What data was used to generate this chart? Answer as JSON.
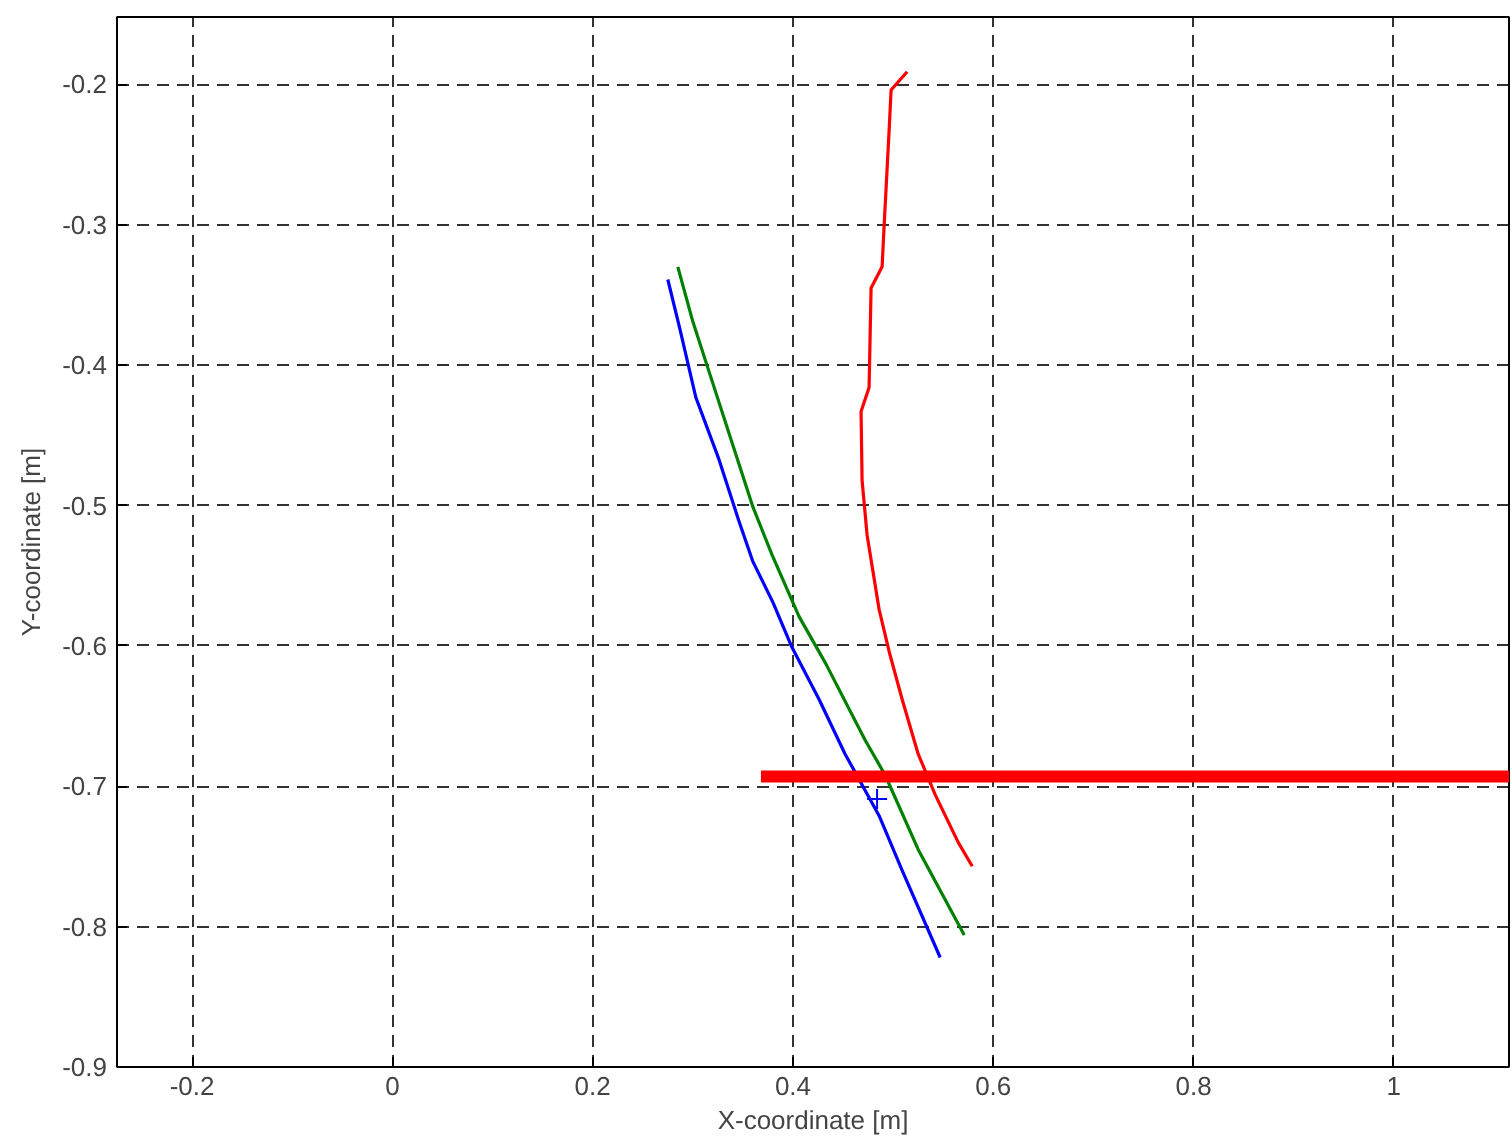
{
  "chart_data": {
    "type": "line",
    "xlabel": "X-coordinate [m]",
    "ylabel": "Y-coordinate [m]",
    "xlim": [
      -0.275,
      1.115
    ],
    "ylim": [
      -0.9,
      -0.152
    ],
    "xticks": [
      {
        "value": -0.2,
        "label": "-0.2"
      },
      0,
      {
        "value": 0.2,
        "label": "0.2"
      },
      {
        "value": 0.4,
        "label": "0.4"
      },
      {
        "value": 0.6,
        "label": "0.6"
      },
      {
        "value": 0.8,
        "label": "0.8"
      },
      1
    ],
    "yticks": [
      {
        "value": -0.9,
        "label": "-0.9"
      },
      {
        "value": -0.8,
        "label": "-0.8"
      },
      {
        "value": -0.7,
        "label": "-0.7"
      },
      {
        "value": -0.6,
        "label": "-0.6"
      },
      {
        "value": -0.5,
        "label": "-0.5"
      },
      {
        "value": -0.4,
        "label": "-0.4"
      },
      {
        "value": -0.3,
        "label": "-0.3"
      },
      {
        "value": -0.2,
        "label": "-0.2"
      }
    ],
    "grid": true,
    "line_style": "solid",
    "series": [
      {
        "color": "#ff0000",
        "x": [
          0.514,
          0.498,
          0.496,
          0.491,
          0.489,
          0.478,
          0.476,
          0.468,
          0.469,
          0.474,
          0.486,
          0.496,
          0.509,
          0.525,
          0.542,
          0.565,
          0.579
        ],
        "values": [
          -0.191,
          -0.204,
          -0.233,
          -0.301,
          -0.33,
          -0.345,
          -0.416,
          -0.433,
          -0.482,
          -0.521,
          -0.574,
          -0.604,
          -0.638,
          -0.677,
          -0.706,
          -0.74,
          -0.757
        ]
      },
      {
        "color": "#008000",
        "x": [
          0.285,
          0.3,
          0.32,
          0.34,
          0.36,
          0.379,
          0.406,
          0.433,
          0.472,
          0.492,
          0.525,
          0.571
        ],
        "values": [
          -0.33,
          -0.369,
          -0.413,
          -0.457,
          -0.501,
          -0.535,
          -0.579,
          -0.613,
          -0.667,
          -0.692,
          -0.745,
          -0.806
        ]
      },
      {
        "color": "#0000ff",
        "x": [
          0.275,
          0.287,
          0.303,
          0.326,
          0.346,
          0.36,
          0.38,
          0.399,
          0.426,
          0.452,
          0.486,
          0.509,
          0.547
        ],
        "values": [
          -0.339,
          -0.374,
          -0.423,
          -0.467,
          -0.511,
          -0.54,
          -0.569,
          -0.601,
          -0.638,
          -0.677,
          -0.721,
          -0.76,
          -0.822
        ]
      },
      {
        "color": "#ff0000",
        "x": [
          0.368,
          1.115
        ],
        "values": [
          -0.693,
          -0.693
        ]
      },
      {
        "type": "scatter",
        "marker": "cross",
        "color": "#0000ff",
        "x": [
          0.484
        ],
        "values": [
          -0.709
        ]
      }
    ]
  }
}
